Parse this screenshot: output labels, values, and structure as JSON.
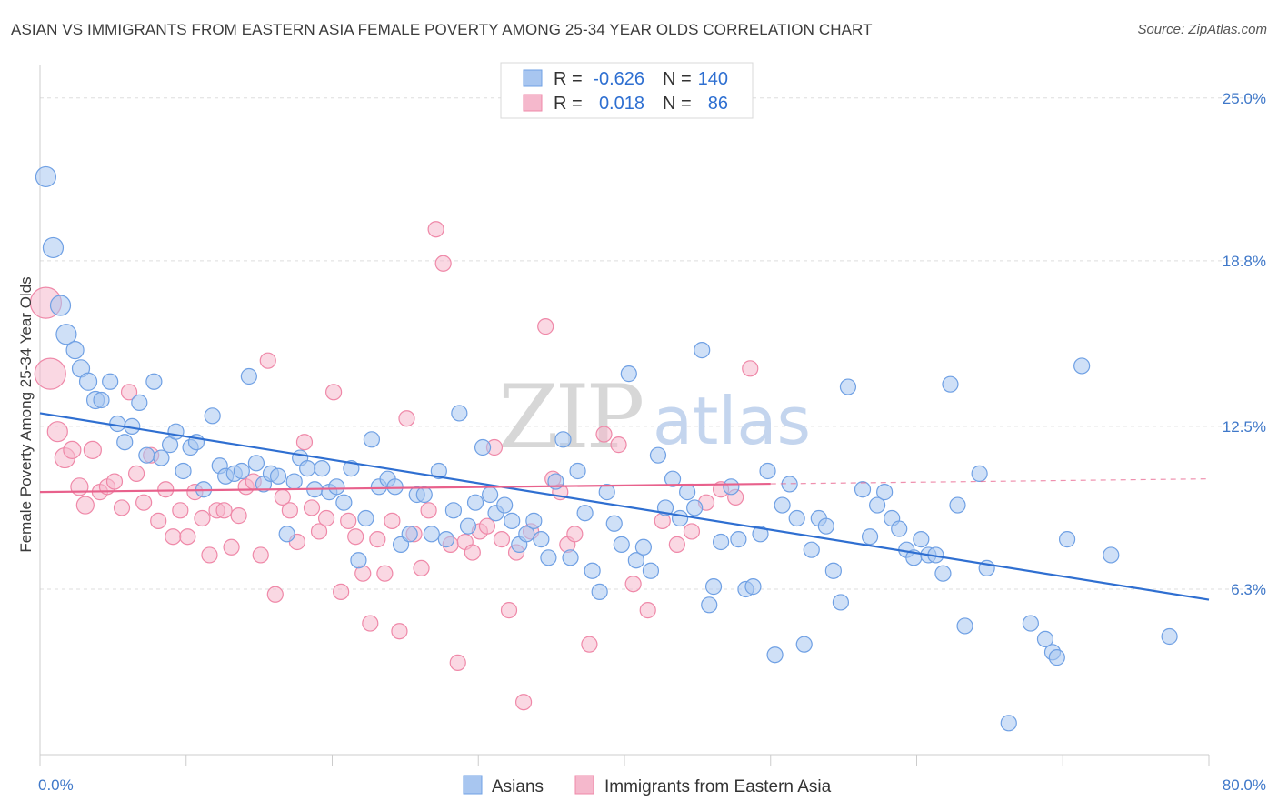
{
  "title": "ASIAN VS IMMIGRANTS FROM EASTERN ASIA FEMALE POVERTY AMONG 25-34 YEAR OLDS CORRELATION CHART",
  "source": "Source: ZipAtlas.com",
  "watermark": {
    "zip": "ZIP",
    "atlas": "atlas"
  },
  "legend": {
    "rows": [
      {
        "r_label": "R =",
        "r_value": "-0.626",
        "n_label": "N =",
        "n_value": "140"
      },
      {
        "r_label": "R =",
        "r_value": "0.018",
        "n_label": "N =",
        "n_value": "86"
      }
    ]
  },
  "colors": {
    "asians": "#6fa0e4",
    "asians_fill": "#a8c6f0",
    "immigrants": "#ef88a8",
    "immigrants_fill": "#f5b8cc",
    "blue_line": "#2f6fd1",
    "pink_line": "#e8618c",
    "tick": "#3f78c9"
  },
  "chart_data": {
    "type": "scatter",
    "title": "ASIAN VS IMMIGRANTS FROM EASTERN ASIA FEMALE POVERTY AMONG 25-34 YEAR OLDS CORRELATION CHART",
    "xlabel": "",
    "ylabel": "Female Poverty Among 25-34 Year Olds",
    "xlim": [
      0,
      80
    ],
    "ylim": [
      0,
      27
    ],
    "x_tick_labels": [
      "0.0%",
      "80.0%"
    ],
    "y_ticks": [
      6.3,
      12.5,
      18.8,
      25.0
    ],
    "y_tick_labels": [
      "6.3%",
      "12.5%",
      "18.8%",
      "25.0%"
    ],
    "grid": true,
    "legend_position": "top-center",
    "series": [
      {
        "name": "Asians",
        "r": -0.626,
        "n": 140,
        "trend": {
          "x": [
            0,
            80
          ],
          "y": [
            13.0,
            5.9
          ]
        },
        "points": [
          [
            0.4,
            22.0
          ],
          [
            0.9,
            19.3
          ],
          [
            1.4,
            17.1
          ],
          [
            1.8,
            16.0
          ],
          [
            2.4,
            15.4
          ],
          [
            2.8,
            14.7
          ],
          [
            3.3,
            14.2
          ],
          [
            3.8,
            13.5
          ],
          [
            4.2,
            13.5
          ],
          [
            4.8,
            14.2
          ],
          [
            5.3,
            12.6
          ],
          [
            5.8,
            11.9
          ],
          [
            6.3,
            12.5
          ],
          [
            6.8,
            13.4
          ],
          [
            7.3,
            11.4
          ],
          [
            7.8,
            14.2
          ],
          [
            8.3,
            11.3
          ],
          [
            8.9,
            11.8
          ],
          [
            9.3,
            12.3
          ],
          [
            9.8,
            10.8
          ],
          [
            10.3,
            11.7
          ],
          [
            10.7,
            11.9
          ],
          [
            11.2,
            10.1
          ],
          [
            11.8,
            12.9
          ],
          [
            12.3,
            11.0
          ],
          [
            12.7,
            10.6
          ],
          [
            13.3,
            10.7
          ],
          [
            13.8,
            10.8
          ],
          [
            14.3,
            14.4
          ],
          [
            14.8,
            11.1
          ],
          [
            15.3,
            10.3
          ],
          [
            15.8,
            10.7
          ],
          [
            16.3,
            10.6
          ],
          [
            16.9,
            8.4
          ],
          [
            17.4,
            10.4
          ],
          [
            17.8,
            11.3
          ],
          [
            18.3,
            10.9
          ],
          [
            18.8,
            10.1
          ],
          [
            19.3,
            10.9
          ],
          [
            19.8,
            10.0
          ],
          [
            20.3,
            10.2
          ],
          [
            20.8,
            9.6
          ],
          [
            21.3,
            10.9
          ],
          [
            21.8,
            7.4
          ],
          [
            22.3,
            9.0
          ],
          [
            22.7,
            12.0
          ],
          [
            23.2,
            10.2
          ],
          [
            23.8,
            10.5
          ],
          [
            24.3,
            10.2
          ],
          [
            24.7,
            8.0
          ],
          [
            25.3,
            8.4
          ],
          [
            25.8,
            9.9
          ],
          [
            26.3,
            9.9
          ],
          [
            26.8,
            8.4
          ],
          [
            27.3,
            10.8
          ],
          [
            27.8,
            8.2
          ],
          [
            28.3,
            9.3
          ],
          [
            28.7,
            13.0
          ],
          [
            29.3,
            8.7
          ],
          [
            29.8,
            9.6
          ],
          [
            30.3,
            11.7
          ],
          [
            30.8,
            9.9
          ],
          [
            31.2,
            9.2
          ],
          [
            31.8,
            9.5
          ],
          [
            32.3,
            8.9
          ],
          [
            32.8,
            8.0
          ],
          [
            33.3,
            8.4
          ],
          [
            33.8,
            8.9
          ],
          [
            34.3,
            8.2
          ],
          [
            34.8,
            7.5
          ],
          [
            35.3,
            10.4
          ],
          [
            35.8,
            12.0
          ],
          [
            36.3,
            7.5
          ],
          [
            36.8,
            10.8
          ],
          [
            37.3,
            9.2
          ],
          [
            37.8,
            7.0
          ],
          [
            38.3,
            6.2
          ],
          [
            38.8,
            10.0
          ],
          [
            39.3,
            8.8
          ],
          [
            39.8,
            8.0
          ],
          [
            40.3,
            14.5
          ],
          [
            40.8,
            7.4
          ],
          [
            41.3,
            7.9
          ],
          [
            41.8,
            7.0
          ],
          [
            42.3,
            11.4
          ],
          [
            42.8,
            9.4
          ],
          [
            43.3,
            10.5
          ],
          [
            43.8,
            9.0
          ],
          [
            44.3,
            10.0
          ],
          [
            44.8,
            9.4
          ],
          [
            45.3,
            15.4
          ],
          [
            45.8,
            5.7
          ],
          [
            46.1,
            6.4
          ],
          [
            46.6,
            8.1
          ],
          [
            47.3,
            10.2
          ],
          [
            47.8,
            8.2
          ],
          [
            48.3,
            6.3
          ],
          [
            48.8,
            6.4
          ],
          [
            49.3,
            8.4
          ],
          [
            49.8,
            10.8
          ],
          [
            50.3,
            3.8
          ],
          [
            50.8,
            9.5
          ],
          [
            51.3,
            10.3
          ],
          [
            51.8,
            9.0
          ],
          [
            52.3,
            4.2
          ],
          [
            52.8,
            7.8
          ],
          [
            53.3,
            9.0
          ],
          [
            53.8,
            8.7
          ],
          [
            54.3,
            7.0
          ],
          [
            54.8,
            5.8
          ],
          [
            55.3,
            14.0
          ],
          [
            56.3,
            10.1
          ],
          [
            56.8,
            8.3
          ],
          [
            57.3,
            9.5
          ],
          [
            57.8,
            10.0
          ],
          [
            58.3,
            9.0
          ],
          [
            58.8,
            8.6
          ],
          [
            59.3,
            7.8
          ],
          [
            59.8,
            7.5
          ],
          [
            60.3,
            8.2
          ],
          [
            60.8,
            7.6
          ],
          [
            61.3,
            7.6
          ],
          [
            61.8,
            6.9
          ],
          [
            62.3,
            14.1
          ],
          [
            62.8,
            9.5
          ],
          [
            63.3,
            4.9
          ],
          [
            64.3,
            10.7
          ],
          [
            64.8,
            7.1
          ],
          [
            66.3,
            1.2
          ],
          [
            67.8,
            5.0
          ],
          [
            68.8,
            4.4
          ],
          [
            69.3,
            3.9
          ],
          [
            69.6,
            3.7
          ],
          [
            70.3,
            8.2
          ],
          [
            71.3,
            14.8
          ],
          [
            73.3,
            7.6
          ],
          [
            77.3,
            4.5
          ]
        ]
      },
      {
        "name": "Immigrants from Eastern Asia",
        "r": 0.018,
        "n": 86,
        "trend": {
          "x": [
            0,
            80
          ],
          "y": [
            10.0,
            10.5
          ]
        },
        "points": [
          [
            0.4,
            17.2
          ],
          [
            0.7,
            14.5
          ],
          [
            1.2,
            12.3
          ],
          [
            1.7,
            11.3
          ],
          [
            2.2,
            11.6
          ],
          [
            2.7,
            10.2
          ],
          [
            3.1,
            9.5
          ],
          [
            3.6,
            11.6
          ],
          [
            4.1,
            10.0
          ],
          [
            4.6,
            10.2
          ],
          [
            5.1,
            10.4
          ],
          [
            5.6,
            9.4
          ],
          [
            6.1,
            13.8
          ],
          [
            6.6,
            10.7
          ],
          [
            7.1,
            9.6
          ],
          [
            7.6,
            11.4
          ],
          [
            8.1,
            8.9
          ],
          [
            8.6,
            10.1
          ],
          [
            9.1,
            8.3
          ],
          [
            9.6,
            9.3
          ],
          [
            10.1,
            8.3
          ],
          [
            10.6,
            10.0
          ],
          [
            11.1,
            9.0
          ],
          [
            11.6,
            7.6
          ],
          [
            12.1,
            9.3
          ],
          [
            12.6,
            9.3
          ],
          [
            13.1,
            7.9
          ],
          [
            13.6,
            9.1
          ],
          [
            14.1,
            10.2
          ],
          [
            14.6,
            10.4
          ],
          [
            15.1,
            7.6
          ],
          [
            15.6,
            15.0
          ],
          [
            16.1,
            6.1
          ],
          [
            16.6,
            9.8
          ],
          [
            17.1,
            9.3
          ],
          [
            17.6,
            8.1
          ],
          [
            18.1,
            11.9
          ],
          [
            18.6,
            9.4
          ],
          [
            19.1,
            8.5
          ],
          [
            19.6,
            9.0
          ],
          [
            20.1,
            13.8
          ],
          [
            20.6,
            6.2
          ],
          [
            21.1,
            8.9
          ],
          [
            21.6,
            8.3
          ],
          [
            22.1,
            6.9
          ],
          [
            22.6,
            5.0
          ],
          [
            23.1,
            8.2
          ],
          [
            23.6,
            6.9
          ],
          [
            24.1,
            8.9
          ],
          [
            24.6,
            4.7
          ],
          [
            25.1,
            12.8
          ],
          [
            25.6,
            8.4
          ],
          [
            26.1,
            7.1
          ],
          [
            26.6,
            9.3
          ],
          [
            27.1,
            20.0
          ],
          [
            27.6,
            18.7
          ],
          [
            28.1,
            8.0
          ],
          [
            28.6,
            3.5
          ],
          [
            29.1,
            8.1
          ],
          [
            29.6,
            7.7
          ],
          [
            30.1,
            8.5
          ],
          [
            30.6,
            8.7
          ],
          [
            31.1,
            11.7
          ],
          [
            31.6,
            8.2
          ],
          [
            32.1,
            5.5
          ],
          [
            32.6,
            7.7
          ],
          [
            33.1,
            2.0
          ],
          [
            33.6,
            8.5
          ],
          [
            34.1,
            25.0
          ],
          [
            34.6,
            16.3
          ],
          [
            35.1,
            10.5
          ],
          [
            35.6,
            10.0
          ],
          [
            36.1,
            8.0
          ],
          [
            36.6,
            8.4
          ],
          [
            37.6,
            4.2
          ],
          [
            38.6,
            12.2
          ],
          [
            39.6,
            11.8
          ],
          [
            40.6,
            6.5
          ],
          [
            41.6,
            5.5
          ],
          [
            42.6,
            8.9
          ],
          [
            43.6,
            8.0
          ],
          [
            44.6,
            8.5
          ],
          [
            45.6,
            9.6
          ],
          [
            46.6,
            10.1
          ],
          [
            47.6,
            9.8
          ],
          [
            48.6,
            14.7
          ]
        ]
      }
    ]
  },
  "bottom_legend": [
    "Asians",
    "Immigrants from Eastern Asia"
  ]
}
